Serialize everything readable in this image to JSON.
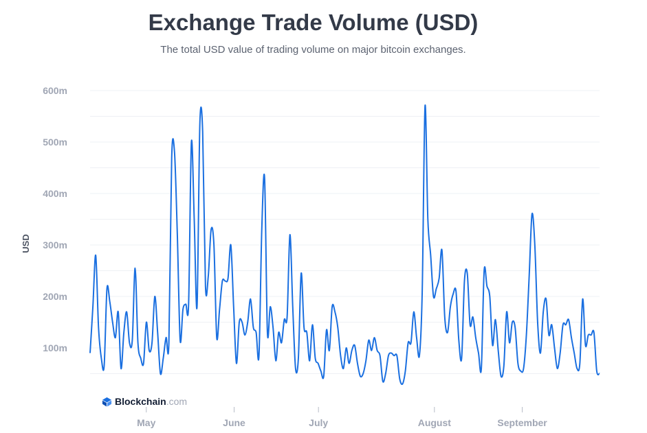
{
  "chart_data": {
    "type": "line",
    "title": "Exchange Trade Volume (USD)",
    "subtitle": "The total USD value of trading volume on major bitcoin exchanges.",
    "ylabel": "USD",
    "xlabel": "",
    "ylim": [
      0,
      600
    ],
    "grid": true,
    "y_ticks": [
      {
        "value": 100,
        "label": "100m"
      },
      {
        "value": 200,
        "label": "200m"
      },
      {
        "value": 300,
        "label": "300m"
      },
      {
        "value": 400,
        "label": "400m"
      },
      {
        "value": 500,
        "label": "500m"
      },
      {
        "value": 600,
        "label": "600m"
      }
    ],
    "x_ticks": [
      {
        "day": 16,
        "label": "May"
      },
      {
        "day": 41,
        "label": "June"
      },
      {
        "day": 65,
        "label": "July"
      },
      {
        "day": 98,
        "label": "August"
      },
      {
        "day": 123,
        "label": "September"
      }
    ],
    "xlim": [
      0,
      145
    ],
    "series": [
      {
        "name": "Exchange Trade Volume (USD)",
        "color": "#1a6fe0",
        "values": [
          90,
          180,
          280,
          140,
          80,
          65,
          215,
          190,
          150,
          120,
          170,
          60,
          130,
          170,
          110,
          115,
          255,
          110,
          80,
          70,
          150,
          95,
          110,
          200,
          130,
          50,
          80,
          120,
          110,
          470,
          480,
          320,
          115,
          175,
          185,
          185,
          500,
          350,
          180,
          535,
          520,
          220,
          240,
          330,
          300,
          120,
          175,
          230,
          230,
          235,
          300,
          180,
          70,
          150,
          150,
          125,
          150,
          195,
          140,
          130,
          85,
          330,
          430,
          130,
          180,
          140,
          75,
          130,
          110,
          155,
          160,
          320,
          180,
          60,
          80,
          245,
          140,
          130,
          75,
          145,
          80,
          70,
          55,
          45,
          135,
          95,
          180,
          170,
          140,
          85,
          60,
          100,
          70,
          95,
          105,
          70,
          45,
          50,
          75,
          115,
          95,
          120,
          95,
          85,
          35,
          50,
          85,
          90,
          85,
          85,
          40,
          30,
          55,
          110,
          110,
          170,
          120,
          85,
          210,
          570,
          350,
          280,
          200,
          215,
          235,
          290,
          160,
          130,
          180,
          205,
          210,
          115,
          80,
          230,
          245,
          145,
          160,
          120,
          90,
          60,
          250,
          220,
          200,
          105,
          155,
          95,
          45,
          65,
          170,
          110,
          150,
          140,
          70,
          55,
          60,
          125,
          240,
          360,
          300,
          150,
          90,
          170,
          195,
          125,
          145,
          100,
          60,
          90,
          145,
          145,
          155,
          120,
          90,
          60,
          70,
          195,
          105,
          125,
          125,
          130,
          55,
          50
        ]
      }
    ]
  },
  "branding": {
    "logo_name": "Blockchain",
    "logo_suffix": ".com",
    "logo_color": "#1a6fe0"
  }
}
